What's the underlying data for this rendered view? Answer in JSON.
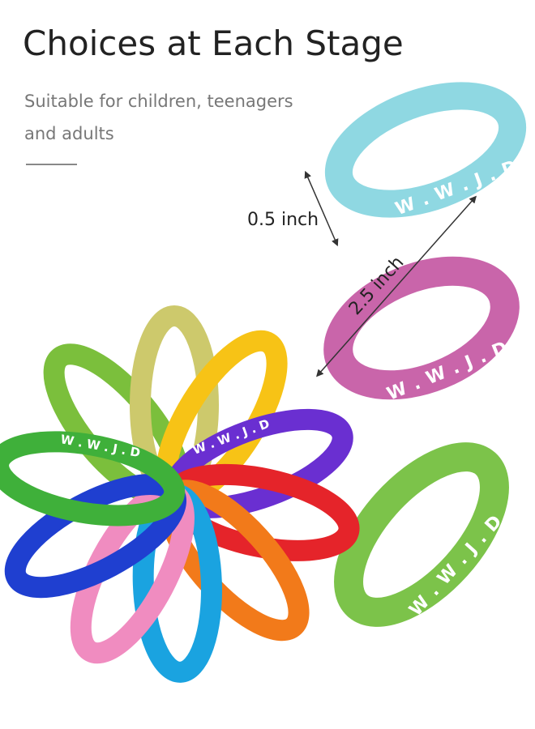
{
  "title": "Choices at Each Stage",
  "subtitle": [
    "Suitable for children, teenagers",
    "and adults"
  ],
  "dimensions": {
    "width": "0.5 inch",
    "diameter": "2.5 inch"
  },
  "band_text": "W . W . J . D"
}
